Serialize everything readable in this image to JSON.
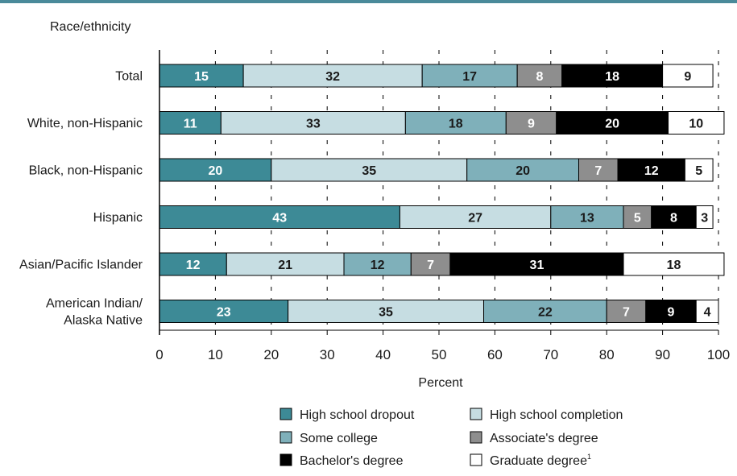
{
  "chart_data": {
    "type": "bar",
    "orientation": "horizontal",
    "stacked": true,
    "ylabel": "Race/ethnicity",
    "xlabel": "Percent",
    "xlim": [
      0,
      100
    ],
    "xticks": [
      "0",
      "10",
      "20",
      "30",
      "40",
      "50",
      "60",
      "70",
      "80",
      "90",
      "100"
    ],
    "grid": "dashed vertical at tick marks",
    "legend_position": "bottom",
    "categories": [
      [
        "Total"
      ],
      [
        "White, non-Hispanic"
      ],
      [
        "Black, non-Hispanic"
      ],
      [
        "Hispanic"
      ],
      [
        "Asian/Pacific Islander"
      ],
      [
        "American Indian/",
        "Alaska Native"
      ]
    ],
    "series": [
      {
        "name": "High school dropout",
        "color": "#3d8a96",
        "label_color": "#ffffff",
        "values": [
          15,
          11,
          20,
          43,
          12,
          23
        ]
      },
      {
        "name": "High school completion",
        "color": "#c6dde2",
        "label_color": "#1a1a1a",
        "values": [
          32,
          33,
          35,
          27,
          21,
          35
        ]
      },
      {
        "name": "Some college",
        "color": "#7fb0ba",
        "label_color": "#1a1a1a",
        "values": [
          17,
          18,
          20,
          13,
          12,
          22
        ]
      },
      {
        "name": "Associate's degree",
        "color": "#8e8e8e",
        "label_color": "#ffffff",
        "values": [
          8,
          9,
          7,
          5,
          7,
          7
        ]
      },
      {
        "name": "Bachelor's degree",
        "color": "#000000",
        "label_color": "#ffffff",
        "values": [
          18,
          20,
          12,
          8,
          31,
          9
        ]
      },
      {
        "name": "Graduate degree",
        "footnote": "1",
        "color": "#ffffff",
        "label_color": "#1a1a1a",
        "values": [
          9,
          10,
          5,
          3,
          18,
          4
        ]
      }
    ]
  }
}
